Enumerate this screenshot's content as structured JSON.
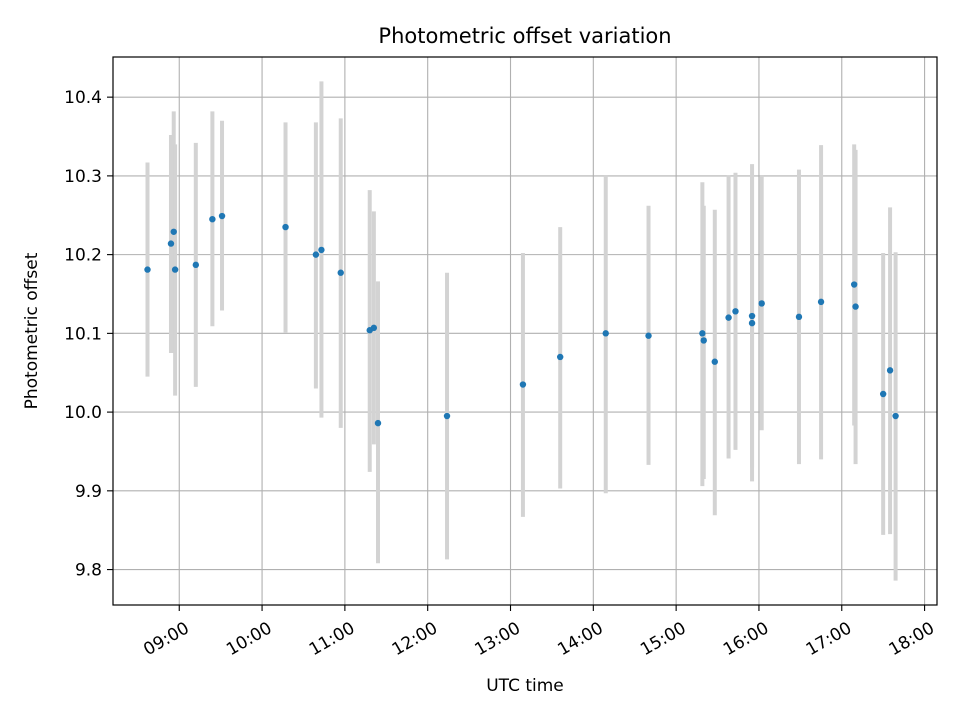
{
  "chart_data": {
    "type": "scatter",
    "title": "Photometric offset variation",
    "xlabel": "UTC time",
    "ylabel": "Photometric offset",
    "x_type": "time",
    "xlim": [
      "08:12",
      "18:09"
    ],
    "ylim": [
      9.755,
      10.451
    ],
    "x_ticks": [
      "09:00",
      "10:00",
      "11:00",
      "12:00",
      "13:00",
      "14:00",
      "15:00",
      "16:00",
      "17:00",
      "18:00"
    ],
    "y_ticks": [
      "9.8",
      "9.9",
      "10.0",
      "10.1",
      "10.2",
      "10.3",
      "10.4"
    ],
    "grid": true,
    "marker_color": "#1f77b4",
    "errorbar_color": "#d3d3d3",
    "points": [
      {
        "x": "08:37",
        "y": 10.181,
        "ylow": 10.045,
        "yhigh": 10.317
      },
      {
        "x": "08:54",
        "y": 10.214,
        "ylow": 10.075,
        "yhigh": 10.352
      },
      {
        "x": "08:56",
        "y": 10.229,
        "ylow": 10.075,
        "yhigh": 10.382
      },
      {
        "x": "08:57",
        "y": 10.181,
        "ylow": 10.021,
        "yhigh": 10.34
      },
      {
        "x": "09:12",
        "y": 10.187,
        "ylow": 10.032,
        "yhigh": 10.342
      },
      {
        "x": "09:24",
        "y": 10.245,
        "ylow": 10.109,
        "yhigh": 10.382
      },
      {
        "x": "09:31",
        "y": 10.249,
        "ylow": 10.129,
        "yhigh": 10.37
      },
      {
        "x": "10:17",
        "y": 10.235,
        "ylow": 10.101,
        "yhigh": 10.368
      },
      {
        "x": "10:39",
        "y": 10.2,
        "ylow": 10.03,
        "yhigh": 10.368
      },
      {
        "x": "10:43",
        "y": 10.206,
        "ylow": 9.993,
        "yhigh": 10.42
      },
      {
        "x": "10:57",
        "y": 10.177,
        "ylow": 9.98,
        "yhigh": 10.373
      },
      {
        "x": "11:18",
        "y": 10.104,
        "ylow": 9.924,
        "yhigh": 10.282
      },
      {
        "x": "11:21",
        "y": 10.107,
        "ylow": 9.959,
        "yhigh": 10.255
      },
      {
        "x": "11:24",
        "y": 9.986,
        "ylow": 9.808,
        "yhigh": 10.166
      },
      {
        "x": "12:14",
        "y": 9.995,
        "ylow": 9.813,
        "yhigh": 10.177
      },
      {
        "x": "13:09",
        "y": 10.035,
        "ylow": 9.867,
        "yhigh": 10.202
      },
      {
        "x": "13:36",
        "y": 10.07,
        "ylow": 9.903,
        "yhigh": 10.235
      },
      {
        "x": "14:09",
        "y": 10.1,
        "ylow": 9.897,
        "yhigh": 10.3
      },
      {
        "x": "14:40",
        "y": 10.097,
        "ylow": 9.933,
        "yhigh": 10.262
      },
      {
        "x": "15:19",
        "y": 10.1,
        "ylow": 9.906,
        "yhigh": 10.292
      },
      {
        "x": "15:20",
        "y": 10.091,
        "ylow": 9.915,
        "yhigh": 10.262
      },
      {
        "x": "15:28",
        "y": 10.064,
        "ylow": 9.869,
        "yhigh": 10.257
      },
      {
        "x": "15:38",
        "y": 10.12,
        "ylow": 9.941,
        "yhigh": 10.301
      },
      {
        "x": "15:43",
        "y": 10.128,
        "ylow": 9.952,
        "yhigh": 10.304
      },
      {
        "x": "15:55",
        "y": 10.113,
        "ylow": 9.912,
        "yhigh": 10.315
      },
      {
        "x": "15:55",
        "y": 10.122,
        "ylow": 9.93,
        "yhigh": 10.3
      },
      {
        "x": "16:02",
        "y": 10.138,
        "ylow": 9.977,
        "yhigh": 10.3
      },
      {
        "x": "16:29",
        "y": 10.121,
        "ylow": 9.934,
        "yhigh": 10.308
      },
      {
        "x": "16:45",
        "y": 10.14,
        "ylow": 9.94,
        "yhigh": 10.339
      },
      {
        "x": "17:09",
        "y": 10.162,
        "ylow": 9.983,
        "yhigh": 10.34
      },
      {
        "x": "17:10",
        "y": 10.134,
        "ylow": 9.934,
        "yhigh": 10.333
      },
      {
        "x": "17:30",
        "y": 10.023,
        "ylow": 9.844,
        "yhigh": 10.202
      },
      {
        "x": "17:35",
        "y": 10.053,
        "ylow": 9.845,
        "yhigh": 10.26
      },
      {
        "x": "17:39",
        "y": 9.995,
        "ylow": 9.786,
        "yhigh": 10.203
      }
    ]
  }
}
